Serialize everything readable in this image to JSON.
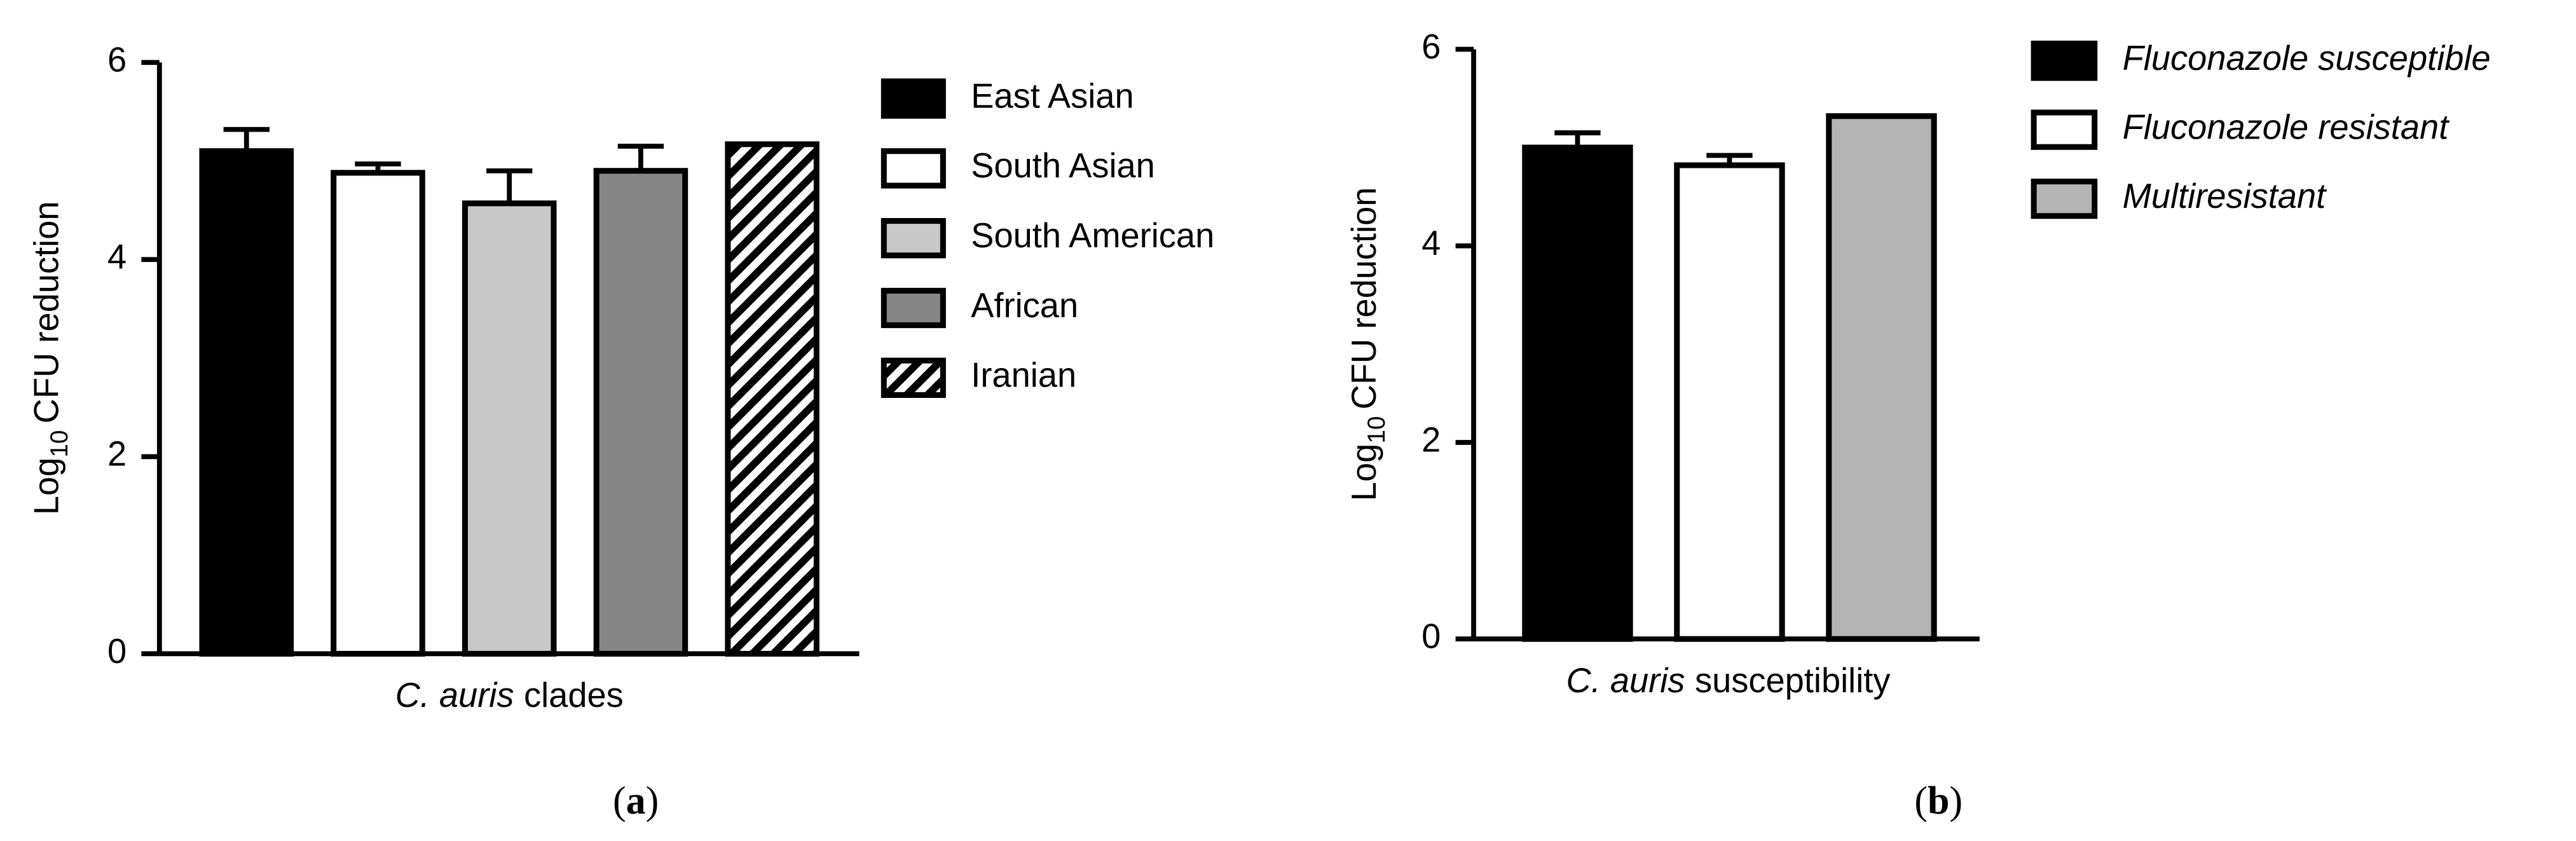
{
  "chart_data": [
    {
      "type": "bar",
      "ylabel_parts": [
        "Log",
        "10",
        "CFU reduction"
      ],
      "xlabel_parts": [
        "C. auris",
        "clades"
      ],
      "panel_label": [
        "(",
        "a",
        ")"
      ],
      "categories": [
        "East Asian",
        "South Asian",
        "South American",
        "African",
        "Iranian"
      ],
      "values": [
        5.1,
        4.88,
        4.57,
        4.9,
        5.17
      ],
      "errors": [
        0.22,
        0.09,
        0.33,
        0.25,
        null
      ],
      "colors": [
        "#000000",
        "#ffffff",
        "#c8c8c8",
        "#868686",
        "hatch"
      ],
      "ylim": [
        0,
        6
      ],
      "yticks": [
        0,
        2,
        4,
        6
      ],
      "legend": "right",
      "legend_italic": false
    },
    {
      "type": "bar",
      "ylabel_parts": [
        "Log",
        "10",
        "CFU reduction"
      ],
      "xlabel_parts": [
        "C. auris",
        "susceptibility"
      ],
      "panel_label": [
        "(",
        "b",
        ")"
      ],
      "categories": [
        "Fluconazole susceptible",
        "Fluconazole resistant",
        "Multiresistant"
      ],
      "values": [
        5.0,
        4.82,
        5.32
      ],
      "errors": [
        0.15,
        0.1,
        null
      ],
      "colors": [
        "#000000",
        "#ffffff",
        "#b4b4b4"
      ],
      "ylim": [
        0,
        6
      ],
      "yticks": [
        0,
        2,
        4,
        6
      ],
      "legend": "right",
      "legend_italic": true
    }
  ]
}
